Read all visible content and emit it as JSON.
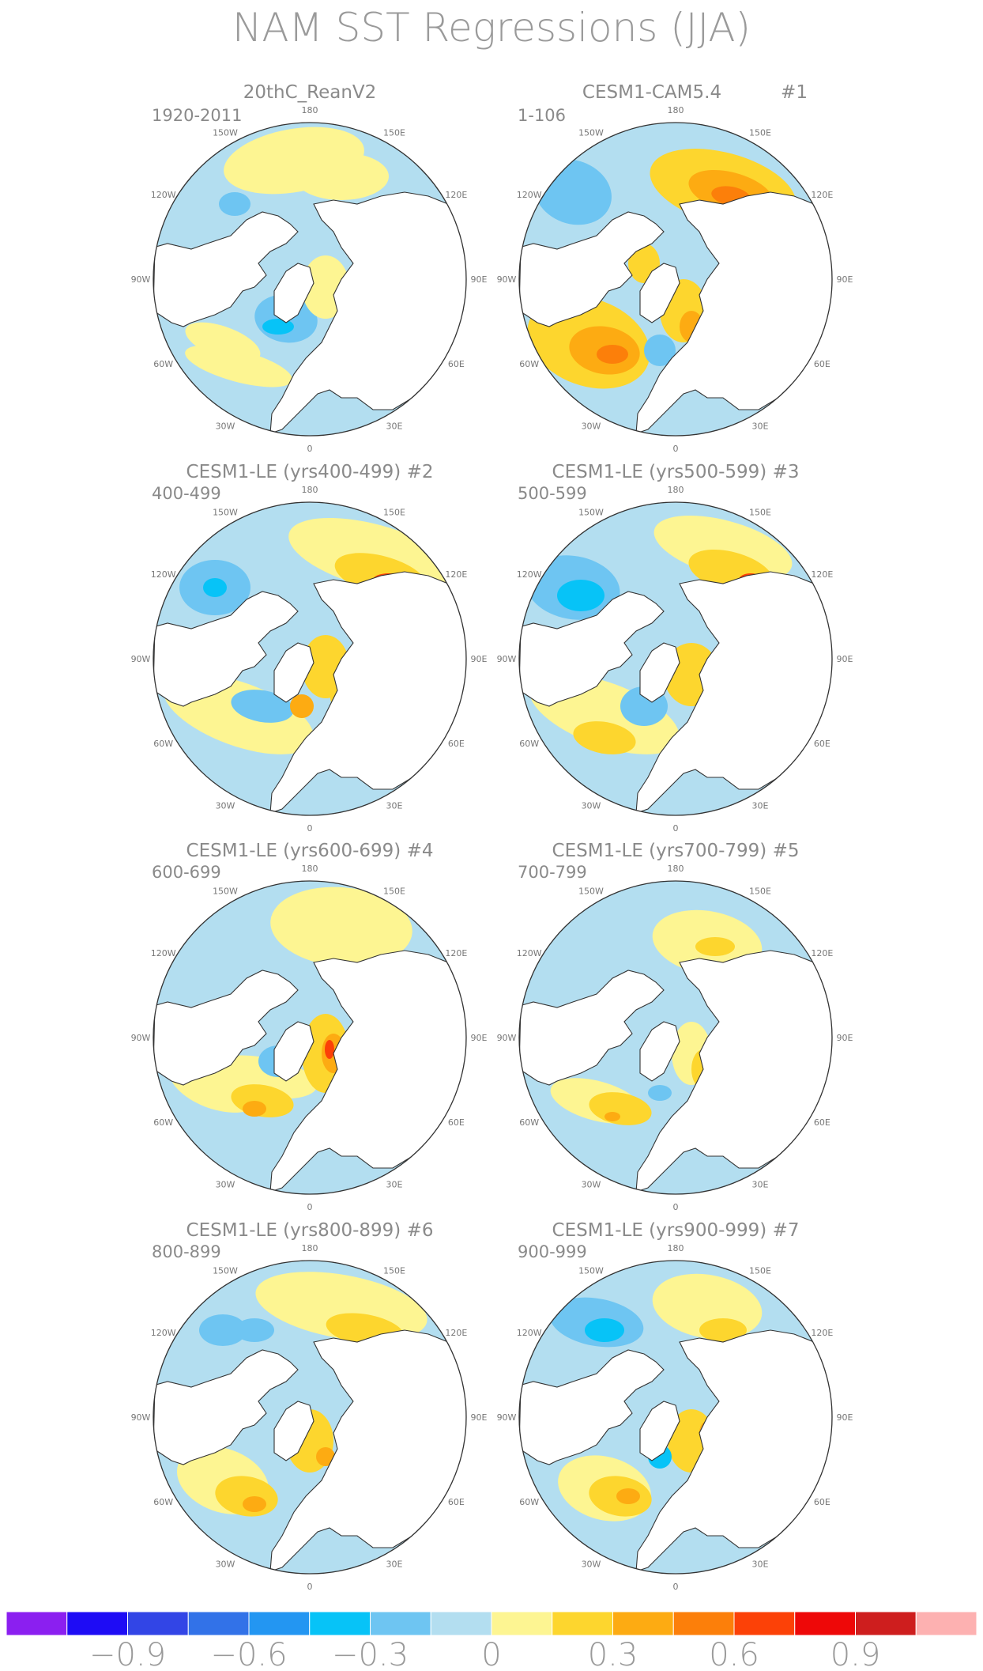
{
  "chart_data": {
    "type": "polar-stereographic-map-panels",
    "title": "NAM SST Regressions (JJA)",
    "longitude_labels": [
      "180",
      "150E",
      "120E",
      "90E",
      "60E",
      "30E",
      "0",
      "30W",
      "60W",
      "90W",
      "120W",
      "150W"
    ],
    "colorbar": {
      "colors": [
        "#8b1ff0",
        "#1e0cf5",
        "#3245e6",
        "#3272e8",
        "#2396f2",
        "#07c3f7",
        "#6ec5f2",
        "#b3def0",
        "#fdf592",
        "#fdd62e",
        "#fdab12",
        "#fc7f0a",
        "#fc4107",
        "#ee0808",
        "#ce1e1e",
        "#fdb1b1"
      ],
      "tick_labels": [
        "−0.9",
        "−0.6",
        "−0.3",
        "0",
        "0.3",
        "0.6",
        "0.9"
      ],
      "tick_values": [
        -0.9,
        -0.6,
        -0.3,
        0,
        0.3,
        0.6,
        0.9
      ]
    },
    "panels": [
      {
        "title": "20thC_ReanV2",
        "period": "1920-2011",
        "number": ""
      },
      {
        "title": "CESM1-CAM5.4",
        "period": "1-106",
        "number": "#1"
      },
      {
        "title": "CESM1-LE (yrs400-499) #2",
        "period": "400-499",
        "number": ""
      },
      {
        "title": "CESM1-LE (yrs500-599) #3",
        "period": "500-599",
        "number": ""
      },
      {
        "title": "CESM1-LE (yrs600-699) #4",
        "period": "600-699",
        "number": ""
      },
      {
        "title": "CESM1-LE (yrs700-799) #5",
        "period": "700-799",
        "number": ""
      },
      {
        "title": "CESM1-LE (yrs800-899) #6",
        "period": "800-899",
        "number": ""
      },
      {
        "title": "CESM1-LE (yrs900-999) #7",
        "period": "900-999",
        "number": ""
      }
    ]
  }
}
